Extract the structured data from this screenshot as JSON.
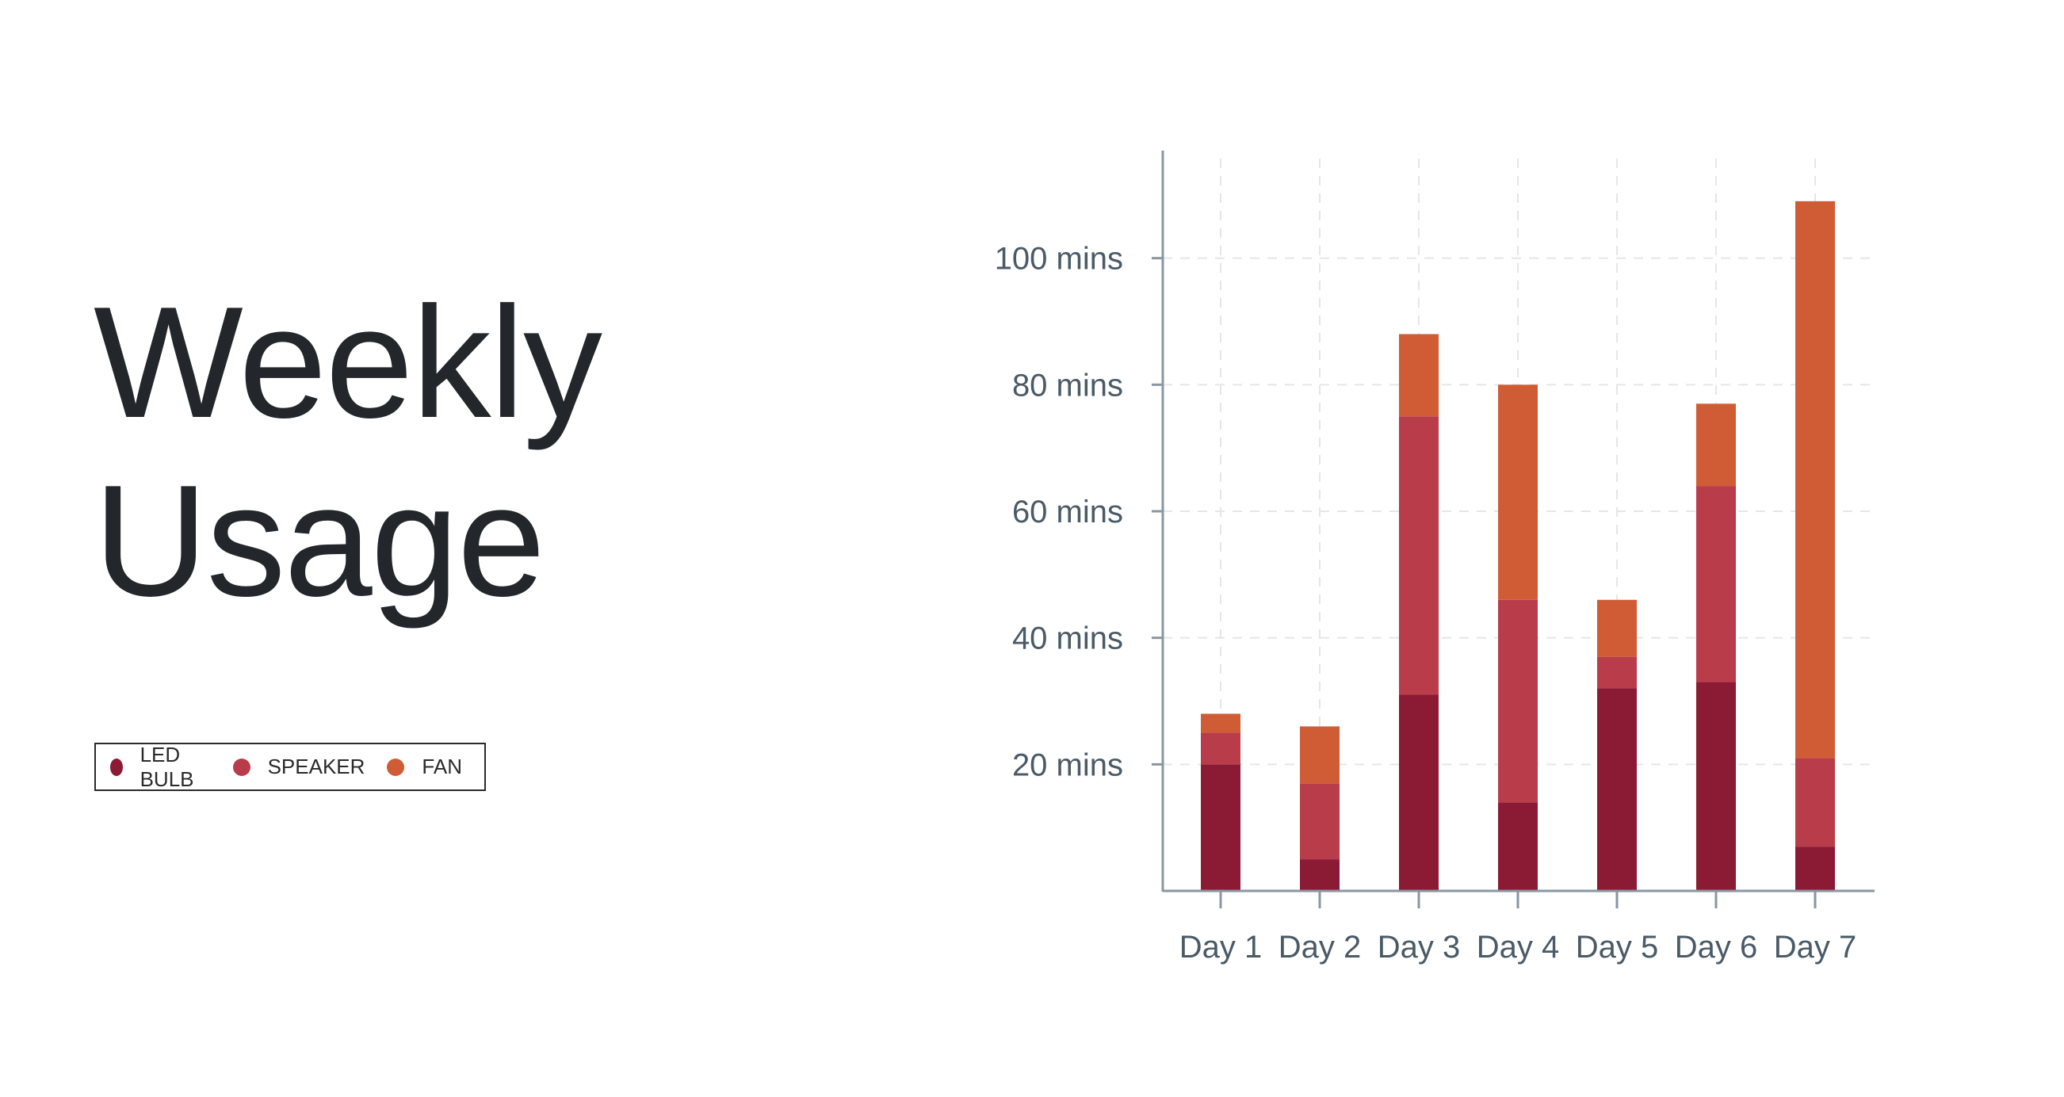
{
  "title": {
    "line1": "Weekly",
    "line2": "Usage"
  },
  "chart_data": {
    "type": "bar",
    "stacked": true,
    "categories": [
      "Day 1",
      "Day 2",
      "Day 3",
      "Day 4",
      "Day 5",
      "Day 6",
      "Day 7"
    ],
    "series": [
      {
        "name": "LED BULB",
        "color": "#8b1a35",
        "values": [
          20,
          5,
          31,
          14,
          32,
          33,
          7
        ]
      },
      {
        "name": "SPEAKER",
        "color": "#b83c4a",
        "values": [
          5,
          12,
          44,
          32,
          5,
          31,
          14
        ]
      },
      {
        "name": "FAN",
        "color": "#d05c36",
        "values": [
          3,
          9,
          13,
          34,
          9,
          13,
          88
        ]
      }
    ],
    "y_ticks": [
      20,
      40,
      60,
      80,
      100
    ],
    "y_tick_suffix": " mins",
    "ylim": [
      0,
      117
    ],
    "grid": true,
    "legend_position": "left"
  }
}
